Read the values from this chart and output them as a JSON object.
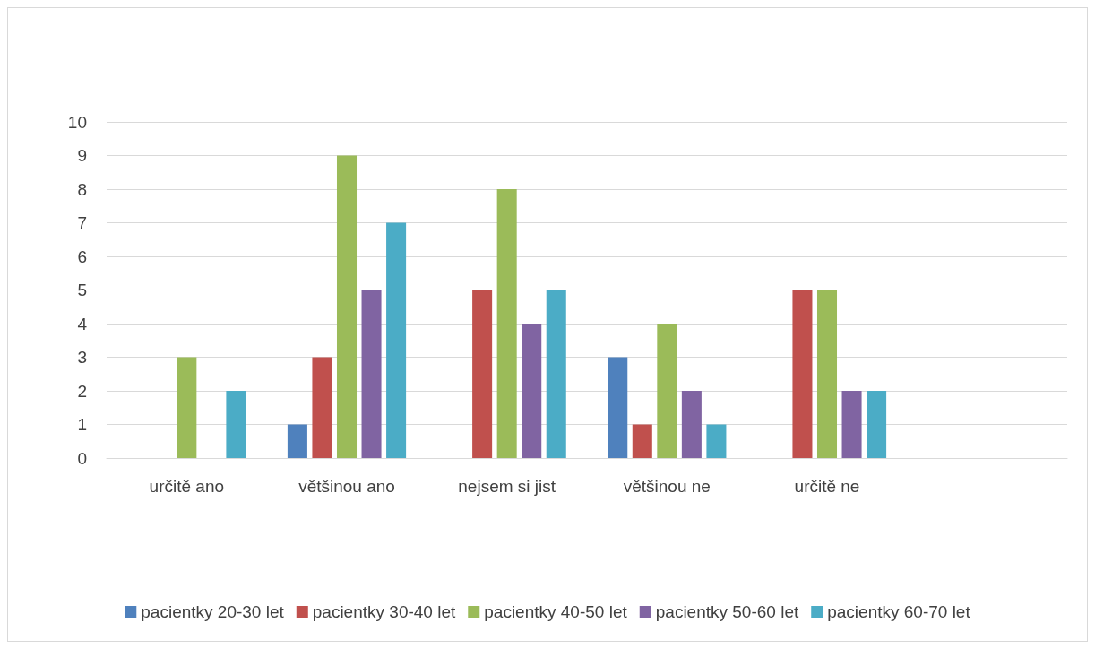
{
  "chart_data": {
    "type": "bar",
    "categories": [
      "určitě ano",
      "většinou ano",
      "nejsem si jist",
      "většinou ne",
      "určitě ne",
      null
    ],
    "series": [
      {
        "name": "pacientky 20-30 let",
        "color": "#4f81bd",
        "values": [
          0,
          1,
          0,
          3,
          0,
          null
        ]
      },
      {
        "name": "pacientky 30-40 let",
        "color": "#c0504d",
        "values": [
          0,
          3,
          5,
          1,
          5,
          null
        ]
      },
      {
        "name": "pacientky 40-50 let",
        "color": "#9bbb59",
        "values": [
          3,
          9,
          8,
          4,
          5,
          null
        ]
      },
      {
        "name": "pacientky 50-60 let",
        "color": "#8064a2",
        "values": [
          0,
          5,
          4,
          2,
          2,
          null
        ]
      },
      {
        "name": "pacientky 60-70 let",
        "color": "#4bacc6",
        "values": [
          2,
          7,
          5,
          1,
          2,
          null
        ]
      }
    ],
    "ylim": [
      0,
      10
    ],
    "yticks": [
      0,
      1,
      2,
      3,
      4,
      5,
      6,
      7,
      8,
      9,
      10
    ],
    "grid": "y",
    "legend": "bottom"
  }
}
